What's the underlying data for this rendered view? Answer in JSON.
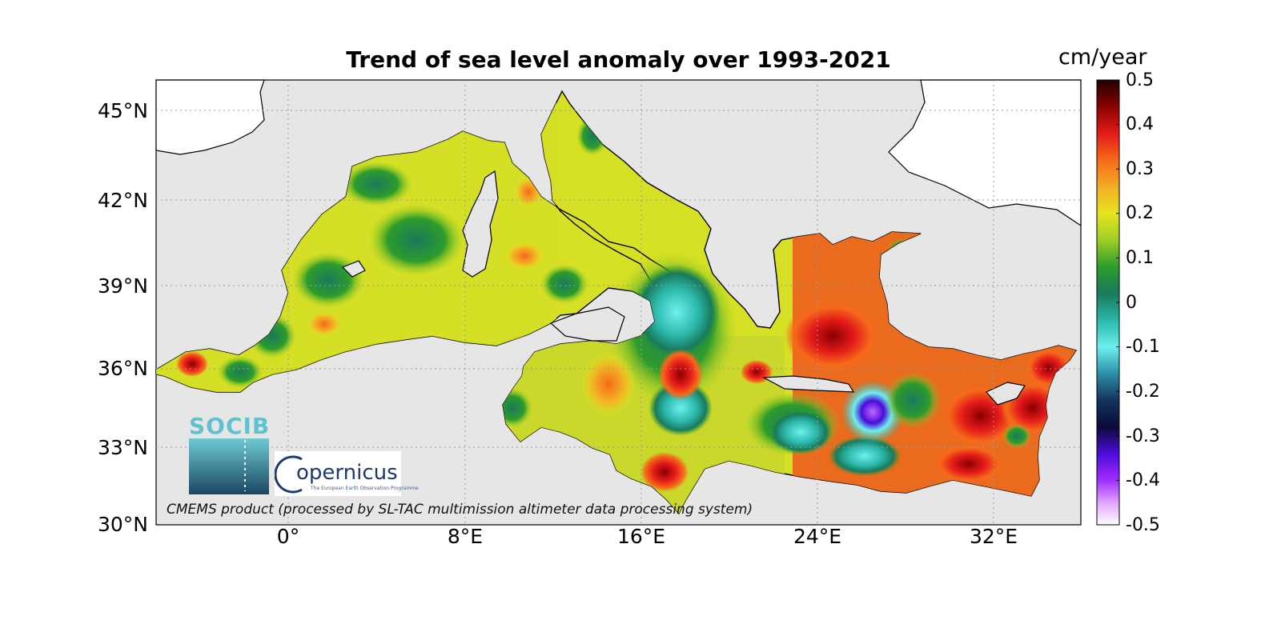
{
  "title": "Trend of sea level anomaly over 1993-2021",
  "colorbar": {
    "units": "cm/year",
    "ticks": [
      "0.5",
      "0.4",
      "0.3",
      "0.2",
      "0.1",
      "0",
      "-0.1",
      "-0.2",
      "-0.3",
      "-0.4",
      "-0.5"
    ],
    "range": [
      -0.5,
      0.5
    ]
  },
  "axes": {
    "y_ticks": [
      "45°N",
      "42°N",
      "39°N",
      "36°N",
      "33°N",
      "30°N"
    ],
    "x_ticks": [
      "0°",
      "8°E",
      "16°E",
      "24°E",
      "32°E"
    ],
    "lat_range": [
      30,
      46
    ],
    "lon_range": [
      -6,
      36
    ],
    "grid": true
  },
  "footer": "CMEMS product (processed by SL-TAC multimission altimeter data processing system)",
  "logos": {
    "socib": "SOCIB",
    "copernicus": "opernicus",
    "copernicus_sub": "The European Earth Observation Programme"
  }
}
